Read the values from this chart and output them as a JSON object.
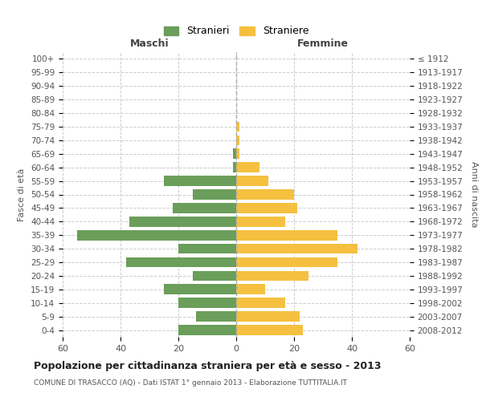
{
  "age_groups": [
    "0-4",
    "5-9",
    "10-14",
    "15-19",
    "20-24",
    "25-29",
    "30-34",
    "35-39",
    "40-44",
    "45-49",
    "50-54",
    "55-59",
    "60-64",
    "65-69",
    "70-74",
    "75-79",
    "80-84",
    "85-89",
    "90-94",
    "95-99",
    "100+"
  ],
  "birth_years": [
    "2008-2012",
    "2003-2007",
    "1998-2002",
    "1993-1997",
    "1988-1992",
    "1983-1987",
    "1978-1982",
    "1973-1977",
    "1968-1972",
    "1963-1967",
    "1958-1962",
    "1953-1957",
    "1948-1952",
    "1943-1947",
    "1938-1942",
    "1933-1937",
    "1928-1932",
    "1923-1927",
    "1918-1922",
    "1913-1917",
    "≤ 1912"
  ],
  "males": [
    20,
    14,
    20,
    25,
    15,
    38,
    20,
    55,
    37,
    22,
    15,
    25,
    1,
    1,
    0,
    0,
    0,
    0,
    0,
    0,
    0
  ],
  "females": [
    23,
    22,
    17,
    10,
    25,
    35,
    42,
    35,
    17,
    21,
    20,
    11,
    8,
    1,
    1,
    1,
    0,
    0,
    0,
    0,
    0
  ],
  "male_color": "#6a9e5a",
  "female_color": "#f5c040",
  "grid_color": "#cccccc",
  "title": "Popolazione per cittadinanza straniera per età e sesso - 2013",
  "subtitle": "COMUNE DI TRASACCO (AQ) - Dati ISTAT 1° gennaio 2013 - Elaborazione TUTTITALIA.IT",
  "xlabel_left": "Maschi",
  "xlabel_right": "Femmine",
  "ylabel_left": "Fasce di età",
  "ylabel_right": "Anni di nascita",
  "legend_male": "Stranieri",
  "legend_female": "Straniere",
  "xlim": 60,
  "bar_height": 0.75
}
